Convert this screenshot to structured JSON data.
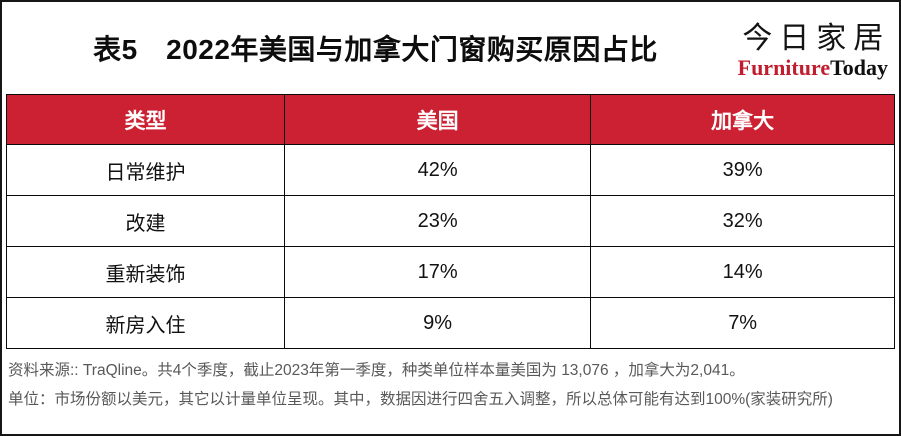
{
  "title": "表5　2022年美国与加拿大门窗购买原因占比",
  "logo": {
    "cn": "今日家居",
    "en_red": "Furniture",
    "en_black": "Today"
  },
  "colors": {
    "header_bg": "#CB2133",
    "logo_red": "#C01E2E",
    "note_gray": "#595959",
    "border_color": "#0a0a0a"
  },
  "table": {
    "columns": [
      "类型",
      "美国",
      "加拿大"
    ],
    "rows": [
      {
        "type": "日常维护",
        "us": "42%",
        "canada": "39%"
      },
      {
        "type": "改建",
        "us": "23%",
        "canada": "32%"
      },
      {
        "type": "重新装饰",
        "us": "17%",
        "canada": "14%"
      },
      {
        "type": "新房入住",
        "us": "9%",
        "canada": "7%"
      }
    ]
  },
  "notes": [
    "资料来源:: TraQline。共4个季度，截止2023年第一季度，种类单位样本量美国为 13,076 ，加拿大为2,041。",
    "单位：市场份额以美元，其它以计量单位呈现。其中，数据因进行四舍五入调整，所以总体可能有达到100%(家装研究所)"
  ],
  "chart_data": {
    "type": "table",
    "title": "表5 2022年美国与加拿大门窗购买原因占比",
    "categories": [
      "日常维护",
      "改建",
      "重新装饰",
      "新房入住"
    ],
    "series": [
      {
        "name": "美国",
        "values": [
          42,
          23,
          17,
          9
        ]
      },
      {
        "name": "加拿大",
        "values": [
          39,
          32,
          14,
          7
        ]
      }
    ],
    "unit": "%",
    "source": "TraQline，共4个季度，截止2023年第一季度；样本量美国13076，加拿大2041"
  }
}
